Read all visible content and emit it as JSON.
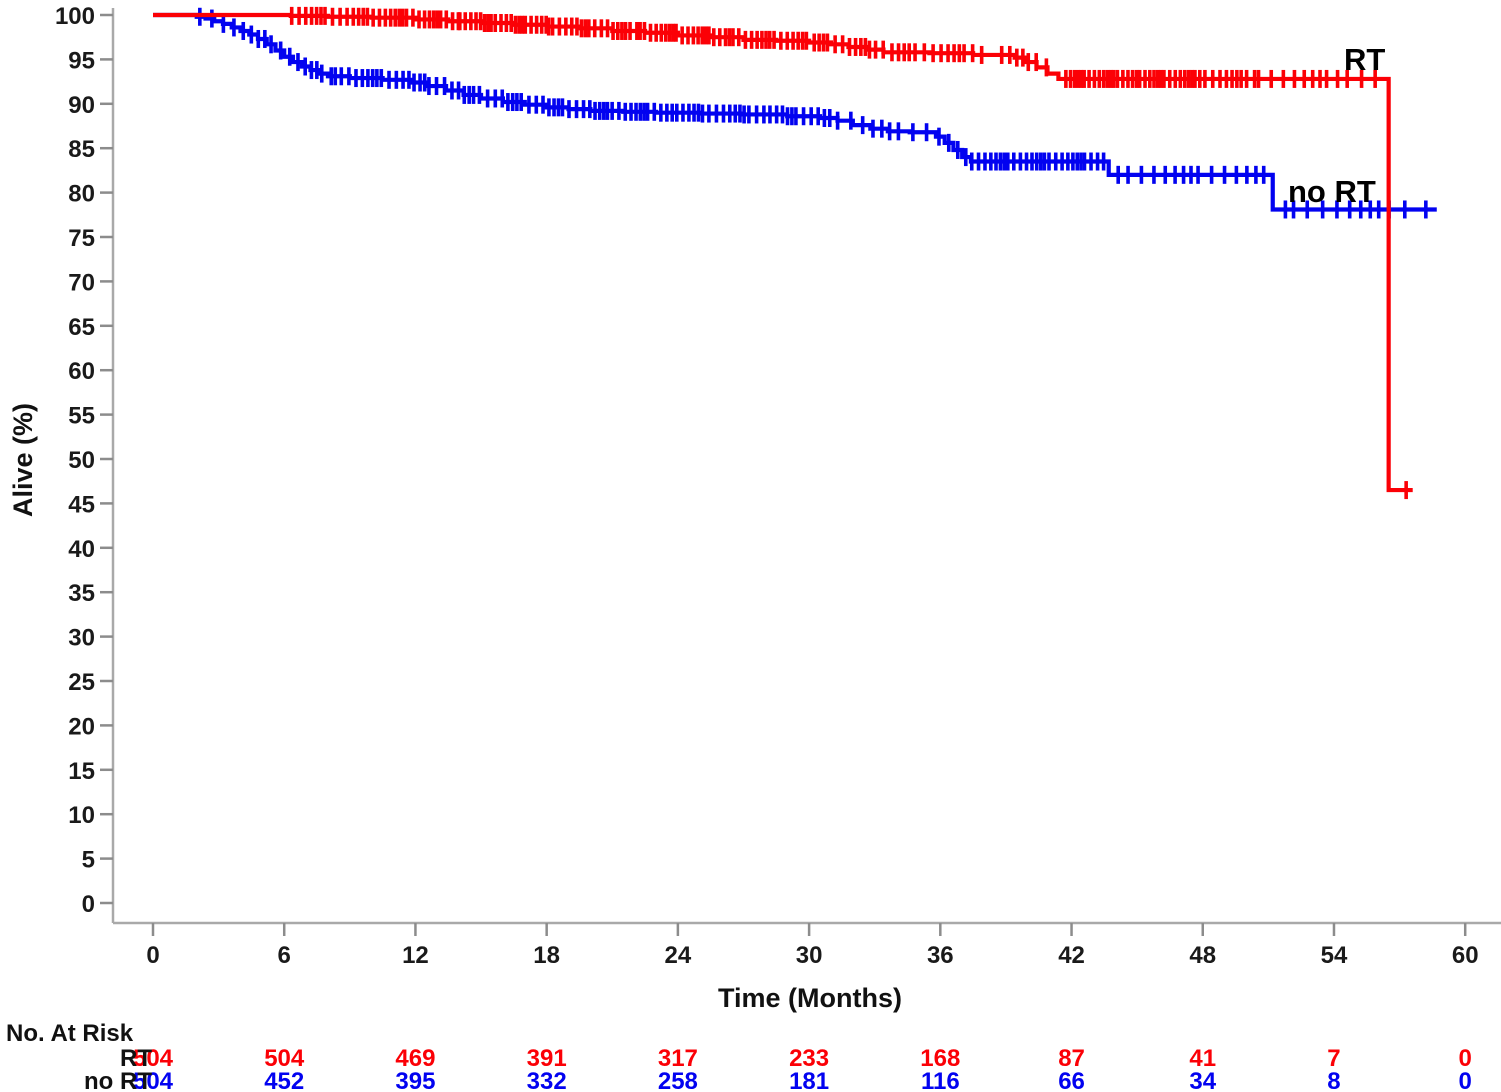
{
  "chart_data": {
    "type": "line",
    "subtype": "kaplan-meier-step",
    "title": "",
    "xlabel": "Time (Months)",
    "ylabel": "Alive (%)",
    "xlim": [
      0,
      60
    ],
    "ylim": [
      0,
      100
    ],
    "x_ticks": [
      0,
      6,
      12,
      18,
      24,
      30,
      36,
      42,
      48,
      54,
      60
    ],
    "y_ticks": [
      0,
      5,
      10,
      15,
      20,
      25,
      30,
      35,
      40,
      45,
      50,
      55,
      60,
      65,
      70,
      75,
      80,
      85,
      90,
      95,
      100
    ],
    "grid": false,
    "legend_position": "labels-at-curve-end",
    "series_labels": {
      "rt": "RT",
      "no_rt": "no RT"
    },
    "series": [
      {
        "name": "no RT",
        "color": "#0202f0",
        "end": 58.7,
        "steps": [
          [
            0,
            100
          ],
          [
            2.0,
            99.8
          ],
          [
            2.4,
            99.6
          ],
          [
            2.8,
            99.3
          ],
          [
            3.2,
            99.0
          ],
          [
            3.6,
            98.6
          ],
          [
            4.0,
            98.2
          ],
          [
            4.4,
            97.8
          ],
          [
            4.8,
            97.3
          ],
          [
            5.2,
            96.7
          ],
          [
            5.6,
            96.0
          ],
          [
            6.0,
            95.3
          ],
          [
            6.4,
            94.7
          ],
          [
            6.8,
            94.2
          ],
          [
            7.2,
            93.8
          ],
          [
            7.6,
            93.4
          ],
          [
            8.0,
            93.1
          ],
          [
            9.0,
            92.9
          ],
          [
            10.5,
            92.7
          ],
          [
            11.8,
            92.4
          ],
          [
            12.6,
            92.0
          ],
          [
            13.4,
            91.5
          ],
          [
            14.2,
            91.0
          ],
          [
            15.0,
            90.6
          ],
          [
            16.0,
            90.2
          ],
          [
            17.0,
            89.9
          ],
          [
            18.0,
            89.6
          ],
          [
            19.0,
            89.4
          ],
          [
            20.0,
            89.2
          ],
          [
            21.5,
            89.1
          ],
          [
            23.0,
            89.0
          ],
          [
            25.0,
            88.9
          ],
          [
            27.0,
            88.8
          ],
          [
            29.0,
            88.6
          ],
          [
            30.5,
            88.4
          ],
          [
            31.3,
            88.1
          ],
          [
            32.0,
            87.6
          ],
          [
            32.8,
            87.2
          ],
          [
            33.6,
            86.9
          ],
          [
            34.6,
            86.8
          ],
          [
            35.8,
            86.3
          ],
          [
            36.2,
            85.6
          ],
          [
            36.6,
            84.8
          ],
          [
            37.0,
            84.0
          ],
          [
            37.4,
            83.5
          ],
          [
            43.7,
            82.0
          ],
          [
            51.2,
            78.1
          ]
        ],
        "censor_runs": [
          [
            2.1,
            5,
            7
          ],
          [
            5,
            8,
            9
          ],
          [
            8,
            12,
            15
          ],
          [
            12,
            16,
            14
          ],
          [
            16,
            20,
            15
          ],
          [
            20,
            24,
            17
          ],
          [
            24,
            28,
            15
          ],
          [
            28,
            31,
            11
          ],
          [
            31,
            35.5,
            9
          ],
          [
            35.8,
            37.2,
            4
          ],
          [
            37.4,
            43.5,
            26
          ],
          [
            44,
            51,
            15
          ],
          [
            51.5,
            57.5,
            11
          ]
        ],
        "censor_singles": [
          58.2
        ]
      },
      {
        "name": "RT",
        "color": "#fb0006",
        "end": 57.6,
        "steps": [
          [
            0,
            100
          ],
          [
            6.3,
            99.9
          ],
          [
            8,
            99.8
          ],
          [
            10,
            99.7
          ],
          [
            12,
            99.5
          ],
          [
            13.5,
            99.3
          ],
          [
            15,
            99.1
          ],
          [
            16.5,
            98.9
          ],
          [
            18,
            98.7
          ],
          [
            19.5,
            98.5
          ],
          [
            21,
            98.2
          ],
          [
            22.5,
            98.0
          ],
          [
            24,
            97.7
          ],
          [
            25.5,
            97.5
          ],
          [
            27,
            97.2
          ],
          [
            28.5,
            97.1
          ],
          [
            30,
            96.9
          ],
          [
            31,
            96.7
          ],
          [
            31.8,
            96.4
          ],
          [
            32.6,
            96.1
          ],
          [
            33.4,
            95.8
          ],
          [
            35.5,
            95.7
          ],
          [
            37.5,
            95.5
          ],
          [
            39.4,
            95.2
          ],
          [
            39.9,
            94.7
          ],
          [
            40.4,
            94.1
          ],
          [
            40.9,
            93.4
          ],
          [
            41.4,
            92.8
          ],
          [
            56.5,
            46.5
          ]
        ],
        "censor_runs": [
          [
            6.2,
            10,
            14
          ],
          [
            10,
            14,
            18
          ],
          [
            14,
            18,
            20
          ],
          [
            18,
            22,
            17
          ],
          [
            22,
            26,
            19
          ],
          [
            26,
            30,
            17
          ],
          [
            30,
            33.5,
            13
          ],
          [
            33.5,
            38,
            14
          ],
          [
            38.5,
            41,
            7
          ],
          [
            41.6,
            45,
            18
          ],
          [
            45,
            48,
            15
          ],
          [
            48,
            50.5,
            9
          ],
          [
            50.5,
            54,
            8
          ],
          [
            54,
            56,
            4
          ]
        ],
        "censor_singles": [
          57.3
        ]
      }
    ]
  },
  "risk_table": {
    "title": "No. At Risk",
    "times": [
      0,
      6,
      12,
      18,
      24,
      30,
      36,
      42,
      48,
      54,
      60
    ],
    "rows": [
      {
        "label": "RT",
        "color": "#fb0006",
        "values": [
          504,
          504,
          469,
          391,
          317,
          233,
          168,
          87,
          41,
          7,
          0
        ]
      },
      {
        "label": "no RT",
        "color": "#0202f0",
        "values": [
          504,
          452,
          395,
          332,
          258,
          181,
          116,
          66,
          34,
          8,
          0
        ]
      }
    ]
  },
  "colors": {
    "rt": "#fb0006",
    "no_rt": "#0202f0",
    "spine": "#a9a9a9",
    "tick": "#8c8c8c",
    "text": "#1a1a1a",
    "background": "#ffffff"
  }
}
